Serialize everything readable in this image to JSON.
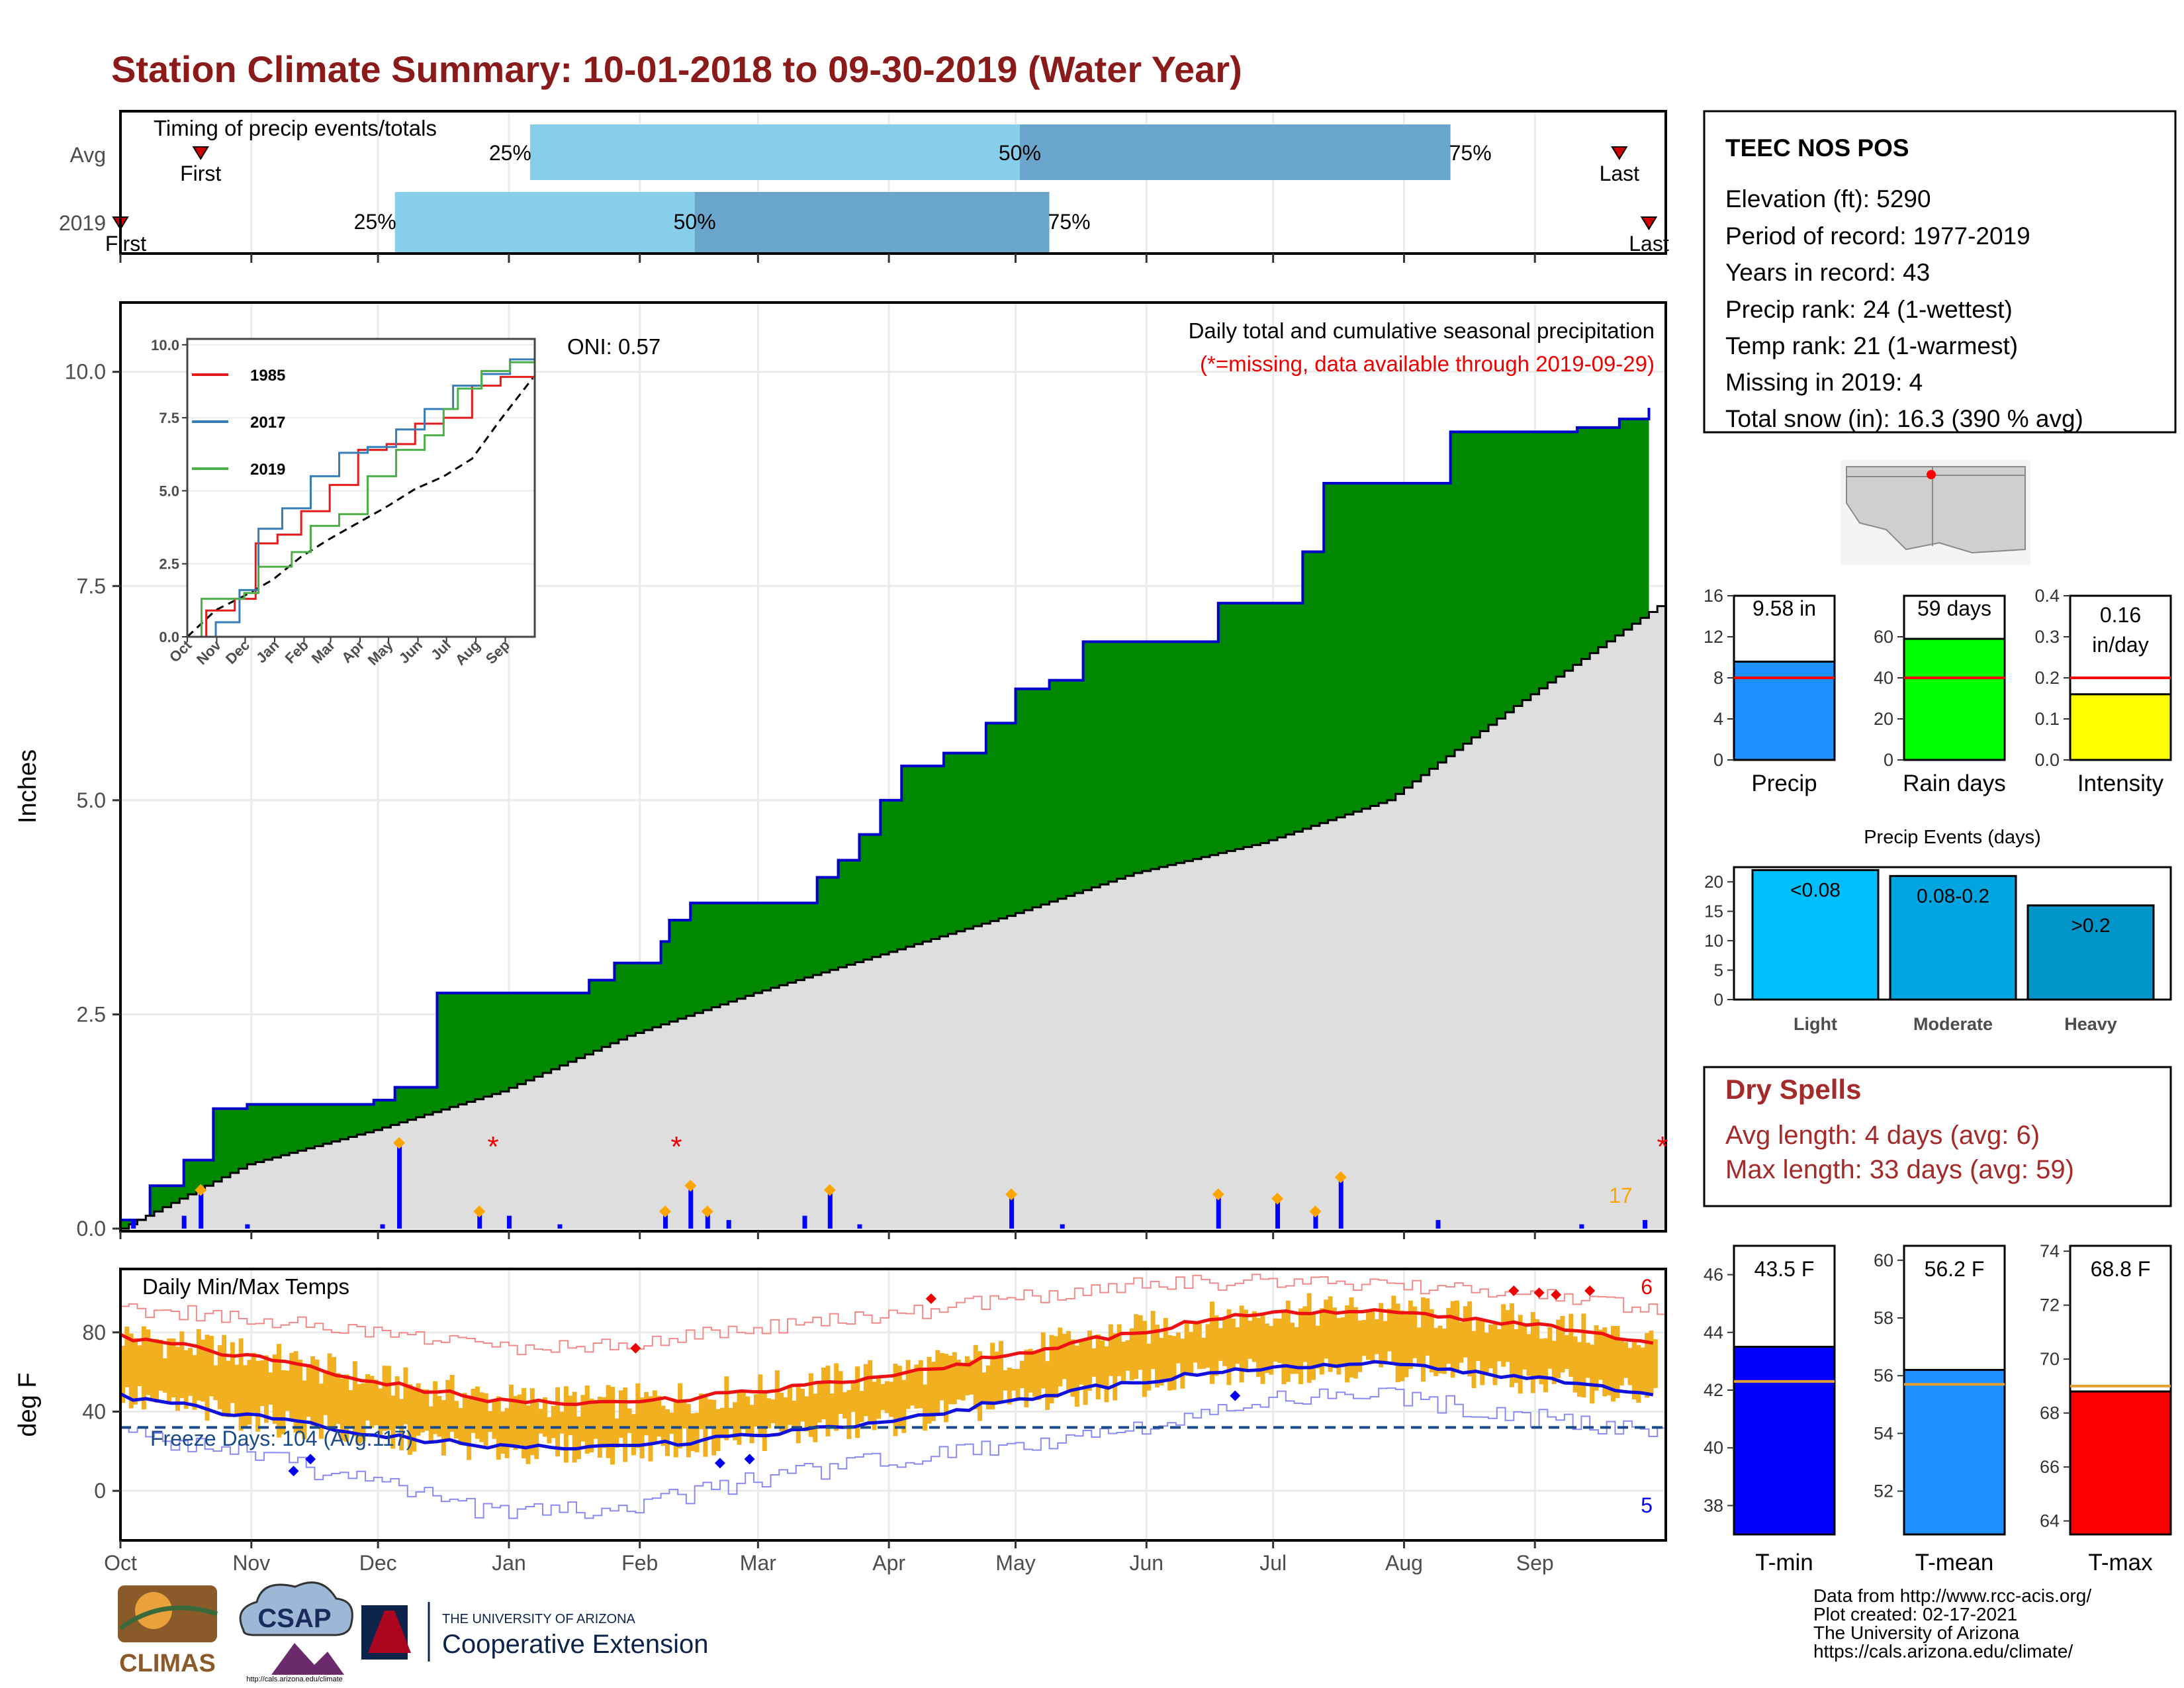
{
  "page_title": "Station Climate Summary: 10-01-2018 to 09-30-2019 (Water Year)",
  "colors": {
    "title": "#8b1a1a",
    "precip_green": "#008800",
    "precip_blue_line": "#0000cc",
    "normal_grey": "#dedede",
    "bar_blue": "#0000ff",
    "marker_orange": "#ffa500",
    "timing_light": "#87ceeb",
    "timing_dark": "#6aa5cc",
    "temp_bar": "#f0b020",
    "tmax_line": "#ee1111",
    "tmin_line": "#1111dd",
    "freeze_line": "#1a4a8a",
    "dry_spells": "#a52a2a"
  },
  "months": [
    "Oct",
    "Nov",
    "Dec",
    "Jan",
    "Feb",
    "Mar",
    "Apr",
    "May",
    "Jun",
    "Jul",
    "Aug",
    "Sep"
  ],
  "timing_panel": {
    "title": "Timing of precip events/totals",
    "rows": [
      {
        "label": "Avg",
        "first": "First",
        "last": "Last",
        "p25": "25%",
        "p50": "50%",
        "p75": "75%",
        "first_doy": 19,
        "p25_doy": 97,
        "p50_doy": 213,
        "p75_doy": 315,
        "last_doy": 355
      },
      {
        "label": "2019",
        "first": "First",
        "last": "Last",
        "p25": "25%",
        "p50": "50%",
        "p75": "75%",
        "first_doy": 0,
        "p25_doy": 65,
        "p50_doy": 136,
        "p75_doy": 220,
        "last_doy": 362
      }
    ]
  },
  "precip_panel": {
    "ylabel": "Inches",
    "yticks": [
      "0.0",
      "2.5",
      "5.0",
      "7.5",
      "10.0"
    ],
    "ylim": [
      0,
      10.5
    ],
    "title": "Daily total and cumulative seasonal precipitation",
    "missing_note": "(*=missing, data available through 2019-09-29)",
    "oni": "ONI: 0.57",
    "count_label": "17",
    "missing_marks": [
      "*",
      "*",
      "*"
    ]
  },
  "inset": {
    "yticks": [
      "0.0",
      "2.5",
      "5.0",
      "7.5",
      "10.0"
    ],
    "xticks": [
      "Oct",
      "Nov",
      "Dec",
      "Jan",
      "Feb",
      "Mar",
      "Apr",
      "May",
      "Jun",
      "Jul",
      "Aug",
      "Sep"
    ],
    "legend": [
      {
        "year": "1985",
        "color": "#e41a1c"
      },
      {
        "year": "2017",
        "color": "#377eb8"
      },
      {
        "year": "2019",
        "color": "#4daf4a"
      }
    ]
  },
  "temp_panel": {
    "ylabel": "deg F",
    "title": "Daily Min/Max Temps",
    "yticks": [
      "0",
      "40",
      "80"
    ],
    "ylim": [
      -25,
      112
    ],
    "freeze_label": "Freeze Days: 104 (Avg:117)",
    "freeze_value": 32,
    "max_count": "6",
    "min_count": "5"
  },
  "station_box": {
    "name": "TEEC NOS POS",
    "lines": [
      "Elevation (ft): 5290",
      "Period of record: 1977-2019",
      "Years in record: 43",
      "Precip rank: 24 (1-wettest)",
      "Temp rank: 21 (1-warmest)",
      "Missing in 2019: 4",
      "Total snow (in): 16.3 (390 % avg)"
    ]
  },
  "summary_bars": [
    {
      "label": "Precip",
      "value_text": "9.58 in",
      "value": 9.58,
      "avg": 8.0,
      "ymax": 16,
      "ticks": [
        "0",
        "4",
        "8",
        "12",
        "16"
      ],
      "color": "#1e90ff"
    },
    {
      "label": "Rain days",
      "value_text": "59 days",
      "value": 59,
      "avg": 40,
      "ymax": 80,
      "ticks": [
        "0",
        "20",
        "40",
        "60"
      ],
      "color": "#00ff00"
    },
    {
      "label": "Intensity",
      "value_text": "0.16 in/day",
      "value": 0.16,
      "avg": 0.2,
      "ymax": 0.4,
      "ticks": [
        "0.0",
        "0.1",
        "0.2",
        "0.3",
        "0.4"
      ],
      "color": "#ffff00"
    }
  ],
  "precip_events": {
    "title": "Precip Events (days)",
    "ticks": [
      "0",
      "5",
      "10",
      "15",
      "20"
    ],
    "ymax": 22.5,
    "bars": [
      {
        "cat": "Light",
        "label": "<0.08",
        "value": 22,
        "color": "#00bfff"
      },
      {
        "cat": "Moderate",
        "label": "0.08-0.2",
        "value": 21,
        "color": "#00a5e0"
      },
      {
        "cat": "Heavy",
        "label": ">0.2",
        "value": 16,
        "color": "#0095c8"
      }
    ]
  },
  "dry_spells": {
    "title": "Dry Spells",
    "avg_line": "Avg length: 4 days (avg: 6)",
    "max_line": "Max length: 33 days (avg: 59)"
  },
  "temp_bars": [
    {
      "label": "T-min",
      "value_text": "43.5 F",
      "value": 43.5,
      "avg": 42.3,
      "ymin": 37,
      "ymax": 47,
      "ticks": [
        "38",
        "40",
        "42",
        "44",
        "46"
      ],
      "color": "#0000ff"
    },
    {
      "label": "T-mean",
      "value_text": "56.2 F",
      "value": 56.2,
      "avg": 55.7,
      "ymin": 50.5,
      "ymax": 60.5,
      "ticks": [
        "52",
        "54",
        "56",
        "58",
        "60"
      ],
      "color": "#1e90ff"
    },
    {
      "label": "T-max",
      "value_text": "68.8 F",
      "value": 68.8,
      "avg": 69.0,
      "ymin": 63.5,
      "ymax": 74.2,
      "ticks": [
        "64",
        "66",
        "68",
        "70",
        "72",
        "74"
      ],
      "color": "#ff0000"
    }
  ],
  "logos": {
    "climas": "CLIMAS",
    "csap": "CSAP",
    "csap_url": "http://cals.arizona.edu/climate",
    "ua_small": "THE UNIVERSITY OF ARIZONA",
    "ua_big": "Cooperative Extension"
  },
  "footer": [
    "Data from http://www.rcc-acis.org/",
    "Plot created: 02-17-2021",
    "The University of Arizona",
    "https://cals.arizona.edu/climate/"
  ],
  "chart_data": [
    {
      "type": "area",
      "title": "Daily total and cumulative seasonal precipitation",
      "ylabel": "Inches",
      "ylim": [
        0,
        10.5
      ],
      "x_unit": "day of water year (0 = Oct 1)",
      "cumulative_2019": {
        "x": [
          0,
          7,
          15,
          22,
          30,
          60,
          65,
          75,
          90,
          111,
          117,
          128,
          130,
          135,
          145,
          155,
          165,
          170,
          175,
          180,
          185,
          195,
          205,
          212,
          220,
          225,
          228,
          232,
          260,
          280,
          285,
          300,
          315,
          330,
          345,
          355,
          362
        ],
        "y": [
          0.1,
          0.5,
          0.8,
          1.4,
          1.45,
          1.5,
          1.65,
          2.75,
          2.75,
          2.9,
          3.1,
          3.35,
          3.6,
          3.8,
          3.8,
          3.8,
          4.1,
          4.3,
          4.6,
          5.0,
          5.4,
          5.55,
          5.9,
          6.3,
          6.4,
          6.4,
          6.85,
          6.85,
          7.3,
          7.9,
          8.7,
          8.7,
          9.3,
          9.3,
          9.35,
          9.45,
          9.58
        ]
      },
      "normal_cumulative": {
        "x": [
          0,
          30,
          60,
          90,
          120,
          150,
          180,
          210,
          240,
          270,
          300,
          330,
          365
        ],
        "y": [
          0,
          0.75,
          1.15,
          1.6,
          2.25,
          2.75,
          3.2,
          3.65,
          4.15,
          4.5,
          5.0,
          6.1,
          7.3
        ]
      },
      "daily_bars": [
        {
          "x": 3,
          "y": 0.1
        },
        {
          "x": 15,
          "y": 0.15
        },
        {
          "x": 19,
          "y": 0.45
        },
        {
          "x": 30,
          "y": 0.05
        },
        {
          "x": 62,
          "y": 0.05
        },
        {
          "x": 66,
          "y": 1.0
        },
        {
          "x": 85,
          "y": 0.2
        },
        {
          "x": 92,
          "y": 0.15
        },
        {
          "x": 104,
          "y": 0.05
        },
        {
          "x": 129,
          "y": 0.2
        },
        {
          "x": 135,
          "y": 0.5
        },
        {
          "x": 139,
          "y": 0.2
        },
        {
          "x": 144,
          "y": 0.1
        },
        {
          "x": 162,
          "y": 0.15
        },
        {
          "x": 168,
          "y": 0.45
        },
        {
          "x": 175,
          "y": 0.05
        },
        {
          "x": 211,
          "y": 0.4
        },
        {
          "x": 223,
          "y": 0.05
        },
        {
          "x": 260,
          "y": 0.4
        },
        {
          "x": 274,
          "y": 0.35
        },
        {
          "x": 283,
          "y": 0.2
        },
        {
          "x": 289,
          "y": 0.6
        },
        {
          "x": 312,
          "y": 0.1
        },
        {
          "x": 346,
          "y": 0.05
        },
        {
          "x": 361,
          "y": 0.1
        }
      ]
    },
    {
      "type": "line",
      "title": "Daily Min/Max Temps",
      "ylabel": "deg F",
      "ylim": [
        -25,
        112
      ],
      "x_unit": "day of water year (0 = Oct 1)",
      "series": [
        {
          "name": "Tmax avg",
          "x": [
            0,
            30,
            60,
            90,
            120,
            150,
            180,
            210,
            240,
            270,
            300,
            330,
            365
          ],
          "y": [
            78,
            68,
            55,
            45,
            44,
            50,
            58,
            68,
            80,
            90,
            90,
            85,
            74
          ]
        },
        {
          "name": "Tmin avg",
          "x": [
            0,
            30,
            60,
            90,
            120,
            150,
            180,
            210,
            240,
            270,
            300,
            330,
            365
          ],
          "y": [
            48,
            38,
            28,
            22,
            22,
            28,
            35,
            45,
            55,
            62,
            64,
            58,
            48
          ]
        },
        {
          "name": "Record high",
          "x": [
            0,
            30,
            60,
            90,
            120,
            150,
            180,
            210,
            240,
            270,
            300,
            330,
            365
          ],
          "y": [
            92,
            88,
            80,
            72,
            75,
            82,
            88,
            97,
            104,
            106,
            104,
            100,
            92
          ]
        },
        {
          "name": "Record low",
          "x": [
            0,
            30,
            60,
            90,
            120,
            150,
            180,
            210,
            240,
            270,
            300,
            330,
            365
          ],
          "y": [
            30,
            18,
            4,
            -12,
            -8,
            5,
            15,
            22,
            32,
            45,
            48,
            38,
            30
          ]
        }
      ]
    }
  ]
}
